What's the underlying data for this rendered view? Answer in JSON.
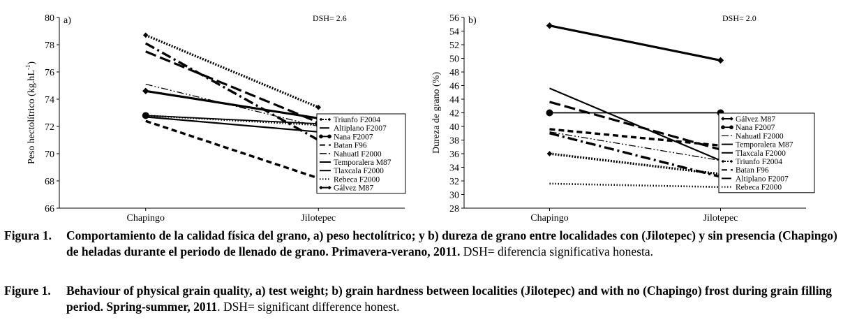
{
  "chart_data": [
    {
      "type": "line",
      "panel_label": "a)",
      "annotation": "DSH= 2.6",
      "ylabel": "Peso hectolítrico (kg.hL-1)",
      "ylabel_main": "Peso hectolítrico (kg.hL",
      "ylabel_sup": "-1",
      "ylabel_end": ")",
      "xlabel": "",
      "categories": [
        "Chapingo",
        "Jilotepec"
      ],
      "ylim": [
        66,
        80
      ],
      "yticks": [
        66,
        68,
        70,
        72,
        74,
        76,
        78,
        80
      ],
      "legend_position": "bottom-right",
      "series": [
        {
          "name": "Triunfo F2004",
          "values": [
            78.7,
            73.4
          ],
          "style": "dot-diamond"
        },
        {
          "name": "Altiplano F2007",
          "values": [
            78.1,
            71.0
          ],
          "style": "dashdot"
        },
        {
          "name": "Nana F2007",
          "values": [
            72.8,
            72.2
          ],
          "style": "circle"
        },
        {
          "name": "Batan F96",
          "values": [
            72.4,
            68.2
          ],
          "style": "dash"
        },
        {
          "name": "Nahuatl F2000",
          "values": [
            75.1,
            72.0
          ],
          "style": "dashdotdot"
        },
        {
          "name": "Temporalera M87",
          "values": [
            72.7,
            71.6
          ],
          "style": "solid"
        },
        {
          "name": "Tlaxcala F2000",
          "values": [
            77.5,
            72.3
          ],
          "style": "longdash"
        },
        {
          "name": "Rebeca F2000",
          "values": [
            72.8,
            72.1
          ],
          "style": "dotted"
        },
        {
          "name": "Gálvez M87",
          "values": [
            74.6,
            72.6
          ],
          "style": "diamond"
        }
      ]
    },
    {
      "type": "line",
      "panel_label": "b)",
      "annotation": "DSH= 2.0",
      "ylabel": "Dureza de grano (%)",
      "xlabel": "",
      "categories": [
        "Chapingo",
        "Jilotepec"
      ],
      "ylim": [
        28,
        56
      ],
      "yticks": [
        28,
        30,
        32,
        34,
        36,
        38,
        40,
        42,
        44,
        46,
        48,
        50,
        52,
        54,
        56
      ],
      "legend_position": "bottom-right",
      "series": [
        {
          "name": "Gálvez M87",
          "values": [
            54.8,
            49.7
          ],
          "style": "diamond"
        },
        {
          "name": "Nana F2007",
          "values": [
            42.0,
            42.0
          ],
          "style": "circle"
        },
        {
          "name": "Nahuatl F2000",
          "values": [
            39.2,
            35.0
          ],
          "style": "dashdotdot"
        },
        {
          "name": "Temporalera M87",
          "values": [
            45.6,
            35.0
          ],
          "style": "solid"
        },
        {
          "name": "Tlaxcala F2000",
          "values": [
            43.6,
            36.6
          ],
          "style": "longdash"
        },
        {
          "name": "Triunfo F2004",
          "values": [
            36.0,
            33.0
          ],
          "style": "dot-diamond"
        },
        {
          "name": "Batan F96",
          "values": [
            39.6,
            37.2
          ],
          "style": "dash"
        },
        {
          "name": "Altiplano F2007",
          "values": [
            39.0,
            32.6
          ],
          "style": "dashdot"
        },
        {
          "name": "Rebeca F2000",
          "values": [
            31.6,
            31.1
          ],
          "style": "dotted"
        }
      ]
    }
  ],
  "caption_es": {
    "lead": "Figura 1.",
    "bold": "Comportamiento de la calidad física del grano, a) peso hectolítrico; y b) dureza de grano entre localidades con (Jilotepec) y sin presencia (Chapingo) de heladas durante el periodo de llenado de grano. Primavera-verano, 2011.",
    "normal": " DSH= diferencia significativa honesta."
  },
  "caption_en": {
    "lead": "Figure 1.",
    "bold": "Behaviour of physical grain quality, a) test weight; b) grain hardness between localities (Jilotepec) and with no (Chapingo) frost during grain filling period. Spring-summer, 2011",
    "normal": ". DSH= significant difference honest."
  }
}
